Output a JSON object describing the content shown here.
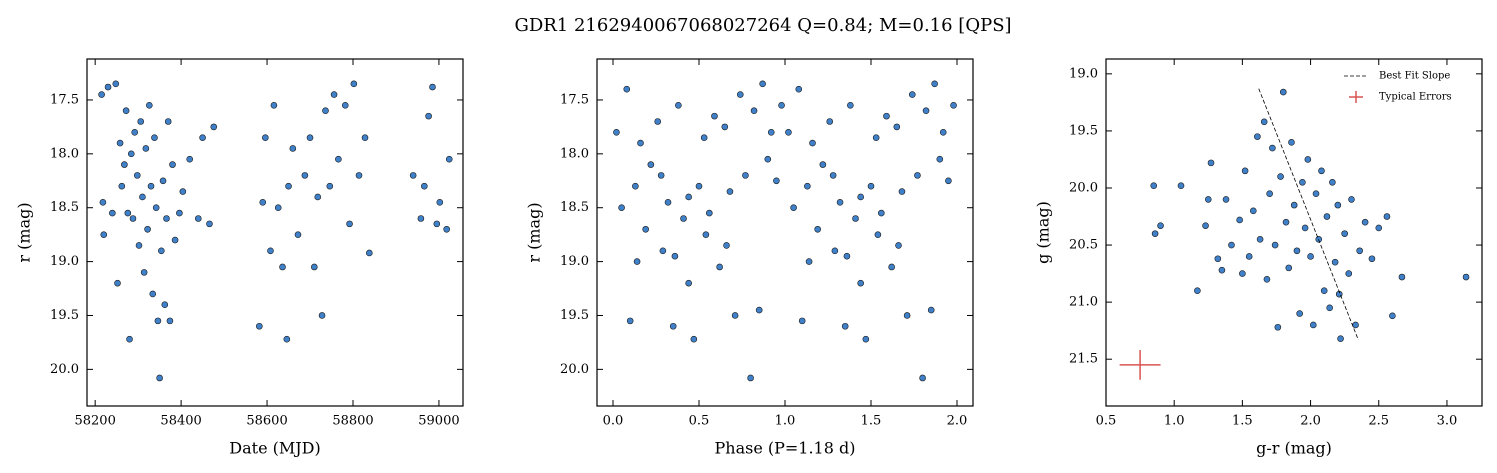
{
  "title": "GDR1 2162940067068027264  Q=0.84; M=0.16 [QPS]",
  "chart_data": [
    {
      "type": "scatter",
      "xlabel": "Date (MJD)",
      "ylabel": "r (mag)",
      "xlim": [
        58181,
        59056
      ],
      "ylim": [
        17.12,
        20.34
      ],
      "y_inverted": true,
      "xticks": [
        58200,
        58400,
        58600,
        58800,
        59000
      ],
      "yticks": [
        17.5,
        {
          "value": 18,
          "label": "18.0"
        },
        18.5,
        {
          "value": 19,
          "label": "19.0"
        },
        19.5,
        {
          "value": 20,
          "label": "20.0"
        }
      ],
      "series": [
        {
          "color": "#3f80c8",
          "x": [
            58215,
            58218,
            58220,
            58230,
            58240,
            58248,
            58252,
            58258,
            58262,
            58268,
            58272,
            58276,
            58280,
            58284,
            58288,
            58292,
            58298,
            58302,
            58306,
            58310,
            58314,
            58318,
            58322,
            58326,
            58330,
            58334,
            58338,
            58342,
            58346,
            58350,
            58354,
            58358,
            58362,
            58366,
            58370,
            58374,
            58380,
            58386,
            58396,
            58404,
            58420,
            58440,
            58450,
            58466,
            58476,
            58582,
            58590,
            58596,
            58608,
            58616,
            58626,
            58636,
            58646,
            58650,
            58660,
            58672,
            58688,
            58700,
            58710,
            58718,
            58728,
            58736,
            58746,
            58756,
            58766,
            58782,
            58792,
            58802,
            58814,
            58828,
            58838,
            58940,
            58958,
            58966,
            58976,
            58985,
            58995,
            59002,
            59018,
            59024
          ],
          "values": [
            17.45,
            18.45,
            18.75,
            17.38,
            18.55,
            17.35,
            19.2,
            17.9,
            18.3,
            18.1,
            17.6,
            18.55,
            19.72,
            18.0,
            18.6,
            17.8,
            18.2,
            18.85,
            17.7,
            18.4,
            19.1,
            17.95,
            18.7,
            17.55,
            18.3,
            19.3,
            17.85,
            18.5,
            19.55,
            20.08,
            18.9,
            18.25,
            19.4,
            18.6,
            17.7,
            19.55,
            18.1,
            18.8,
            18.55,
            18.35,
            18.05,
            18.6,
            17.85,
            18.65,
            17.75,
            19.6,
            18.45,
            17.85,
            18.9,
            17.55,
            18.5,
            19.05,
            19.72,
            18.3,
            17.95,
            18.75,
            18.2,
            17.85,
            19.05,
            18.4,
            19.5,
            17.6,
            18.3,
            17.45,
            18.05,
            17.55,
            18.65,
            17.35,
            18.2,
            17.85,
            18.92,
            18.2,
            18.6,
            18.3,
            17.65,
            17.38,
            18.65,
            18.45,
            18.7,
            18.05
          ]
        }
      ]
    },
    {
      "type": "scatter",
      "xlabel": "Phase (P=1.18 d)",
      "ylabel": "r (mag)",
      "xlim": [
        -0.093,
        2.093
      ],
      "ylim": [
        17.12,
        20.34
      ],
      "y_inverted": true,
      "xticks": [
        {
          "value": 0,
          "label": "0.0"
        },
        0.5,
        {
          "value": 1,
          "label": "1.0"
        },
        1.5,
        {
          "value": 2,
          "label": "2.0"
        }
      ],
      "yticks": [
        17.5,
        {
          "value": 18,
          "label": "18.0"
        },
        18.5,
        {
          "value": 19,
          "label": "19.0"
        },
        19.5,
        {
          "value": 20,
          "label": "20.0"
        }
      ],
      "series": [
        {
          "color": "#3f80c8",
          "x": [
            0.02,
            0.05,
            0.08,
            0.1,
            0.13,
            0.16,
            0.19,
            0.22,
            0.26,
            0.29,
            0.32,
            0.35,
            0.38,
            0.41,
            0.44,
            0.47,
            0.5,
            0.53,
            0.56,
            0.59,
            0.62,
            0.65,
            0.68,
            0.71,
            0.74,
            0.77,
            0.8,
            0.82,
            0.85,
            0.87,
            0.9,
            0.92,
            0.95,
            0.98,
            0.14,
            0.36,
            0.54,
            0.66,
            0.44,
            0.28,
            1.02,
            1.05,
            1.08,
            1.1,
            1.13,
            1.16,
            1.19,
            1.22,
            1.26,
            1.29,
            1.32,
            1.35,
            1.38,
            1.41,
            1.44,
            1.47,
            1.5,
            1.53,
            1.56,
            1.59,
            1.62,
            1.65,
            1.68,
            1.71,
            1.74,
            1.77,
            1.8,
            1.82,
            1.85,
            1.87,
            1.9,
            1.92,
            1.95,
            1.98,
            1.14,
            1.36,
            1.54,
            1.66,
            1.44,
            1.28
          ],
          "values": [
            17.8,
            18.5,
            17.4,
            19.55,
            18.3,
            17.9,
            18.7,
            18.1,
            17.7,
            18.9,
            18.45,
            19.6,
            17.55,
            18.6,
            19.2,
            19.72,
            18.3,
            17.85,
            18.55,
            17.65,
            19.05,
            17.75,
            18.35,
            19.5,
            17.45,
            18.2,
            20.08,
            17.6,
            19.45,
            17.35,
            18.05,
            17.8,
            18.25,
            17.55,
            19.0,
            18.95,
            18.75,
            18.85,
            18.4,
            18.2,
            17.8,
            18.5,
            17.4,
            19.55,
            18.3,
            17.9,
            18.7,
            18.1,
            17.7,
            18.9,
            18.45,
            19.6,
            17.55,
            18.6,
            19.2,
            19.72,
            18.3,
            17.85,
            18.55,
            17.65,
            19.05,
            17.75,
            18.35,
            19.5,
            17.45,
            18.2,
            20.08,
            17.6,
            19.45,
            17.35,
            18.05,
            17.8,
            18.25,
            17.55,
            19.0,
            18.95,
            18.75,
            18.85,
            18.4,
            18.2
          ]
        }
      ]
    },
    {
      "type": "scatter",
      "xlabel": "g-r (mag)",
      "ylabel": "g (mag)",
      "xlim": [
        0.5,
        3.257
      ],
      "ylim": [
        18.87,
        21.91
      ],
      "y_inverted": true,
      "xticks": [
        0.5,
        {
          "value": 1,
          "label": "1.0"
        },
        1.5,
        {
          "value": 2,
          "label": "2.0"
        },
        2.5,
        {
          "value": 3,
          "label": "3.0"
        }
      ],
      "yticks": [
        {
          "value": 19,
          "label": "19.0"
        },
        19.5,
        {
          "value": 20,
          "label": "20.0"
        },
        20.5,
        {
          "value": 21,
          "label": "21.0"
        },
        21.5
      ],
      "legend": "upper right",
      "series": [
        {
          "color": "#3f80c8",
          "x": [
            0.85,
            0.86,
            0.9,
            1.05,
            1.17,
            1.23,
            1.25,
            1.27,
            1.32,
            1.35,
            1.38,
            1.42,
            1.48,
            1.5,
            1.52,
            1.55,
            1.58,
            1.61,
            1.63,
            1.66,
            1.68,
            1.7,
            1.72,
            1.74,
            1.76,
            1.78,
            1.8,
            1.82,
            1.84,
            1.86,
            1.88,
            1.9,
            1.92,
            1.94,
            1.96,
            1.98,
            2.0,
            2.02,
            2.04,
            2.06,
            2.08,
            2.1,
            2.12,
            2.14,
            2.16,
            2.18,
            2.2,
            2.21,
            2.22,
            2.25,
            2.28,
            2.3,
            2.33,
            2.36,
            2.4,
            2.45,
            2.5,
            2.56,
            2.6,
            2.67,
            3.14
          ],
          "values": [
            19.98,
            20.4,
            20.33,
            19.98,
            20.9,
            20.33,
            20.1,
            19.78,
            20.62,
            20.72,
            20.1,
            20.5,
            20.28,
            20.75,
            19.85,
            20.6,
            20.2,
            19.55,
            20.45,
            19.42,
            20.8,
            20.05,
            19.65,
            20.5,
            21.22,
            19.9,
            19.16,
            20.3,
            20.7,
            19.6,
            20.15,
            20.55,
            21.1,
            19.95,
            20.35,
            19.75,
            20.6,
            21.2,
            20.05,
            20.45,
            19.85,
            20.9,
            20.25,
            21.05,
            19.95,
            20.65,
            20.15,
            20.93,
            21.32,
            20.4,
            20.75,
            20.1,
            21.2,
            20.55,
            20.3,
            20.62,
            20.35,
            20.25,
            21.12,
            20.78,
            20.78
          ]
        },
        {
          "type": "line",
          "name": "Best Fit Slope",
          "color": "#000000",
          "x": [
            1.62,
            2.35
          ],
          "values": [
            19.13,
            21.33
          ]
        },
        {
          "type": "errorbar",
          "name": "Typical Errors",
          "color": "#d9534f",
          "x": [
            0.75
          ],
          "values": [
            21.55
          ],
          "xerr": [
            0.15
          ],
          "yerr": [
            0.13
          ]
        }
      ]
    }
  ]
}
